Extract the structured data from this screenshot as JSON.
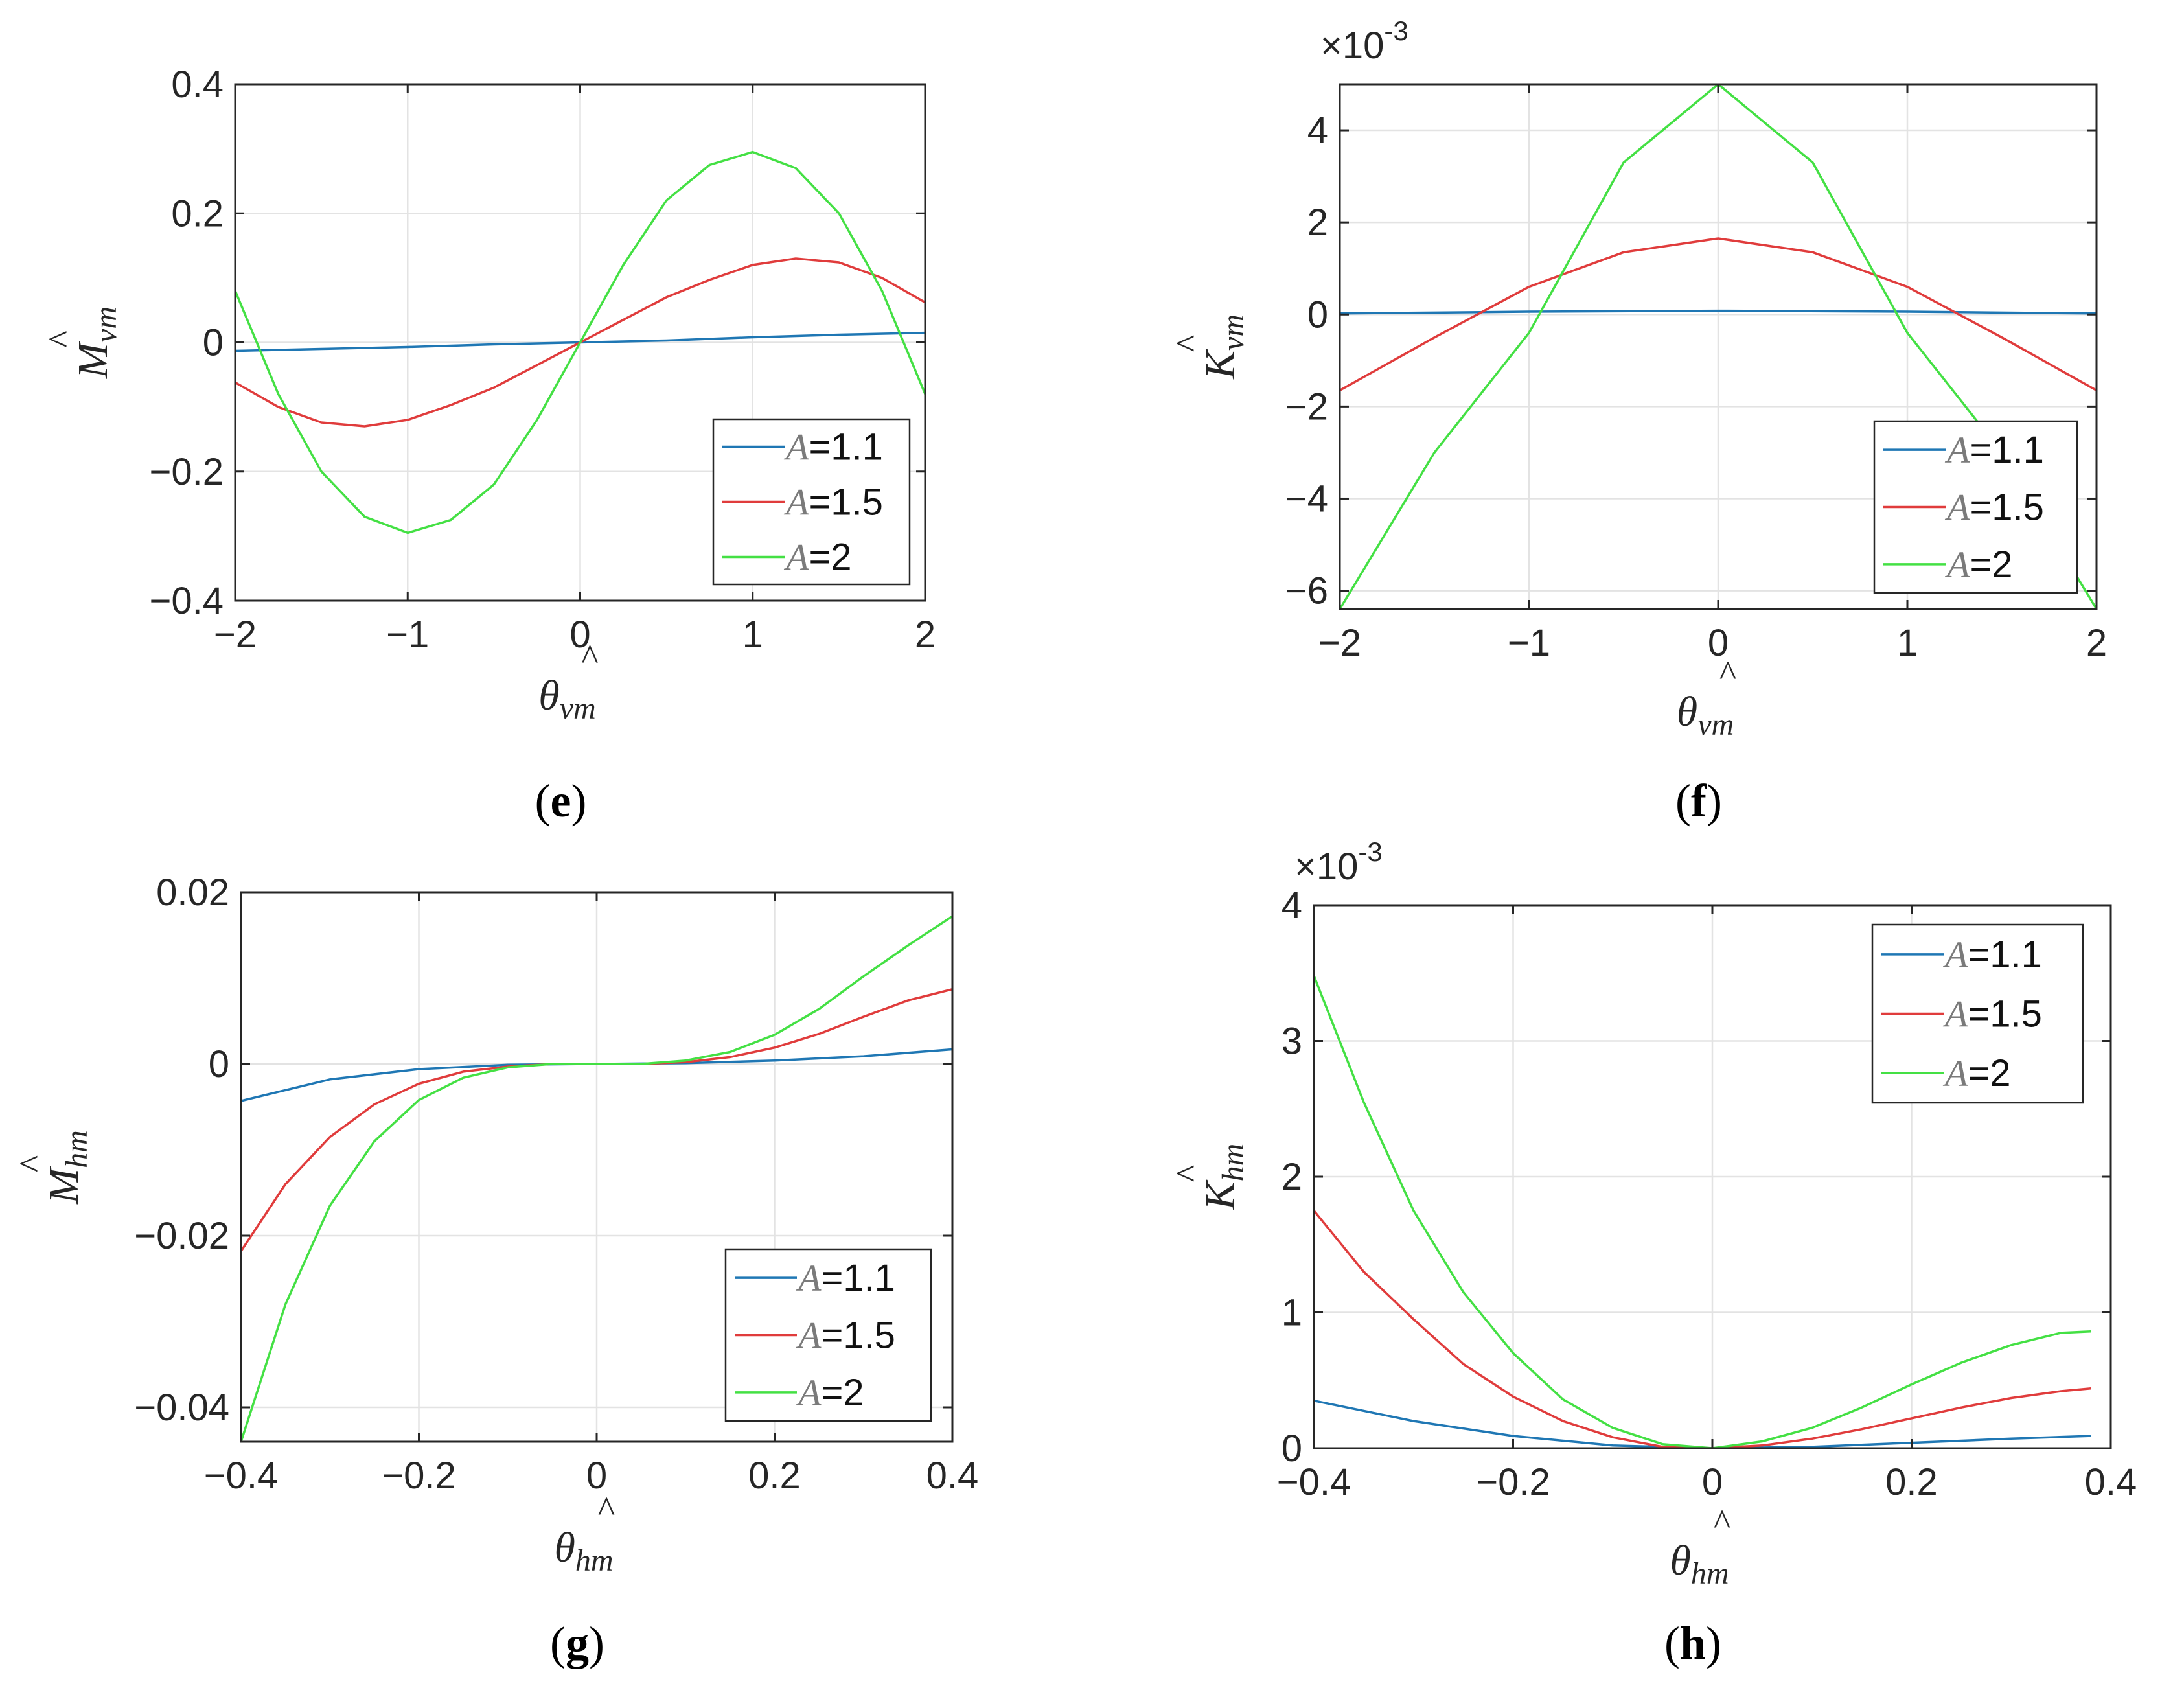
{
  "legend_prefix": "A",
  "colors": {
    "A=1.1": "#1f77b4",
    "A=1.5": "#e03c3c",
    "A=2": "#44e044"
  },
  "chart_data": [
    {
      "type": "line",
      "panel_label": "e",
      "title": "",
      "xlabel": {
        "base": "θ",
        "sub": "vm",
        "hat": "^"
      },
      "ylabel": {
        "base": "M",
        "sub": "vm",
        "hat": "^"
      },
      "xlim": [
        -2,
        2
      ],
      "ylim": [
        -0.4,
        0.4
      ],
      "xticks": [
        -2,
        -1,
        0,
        1,
        2
      ],
      "xtick_labels": [
        "−2",
        "−1",
        "0",
        "1",
        "2"
      ],
      "yticks": [
        -0.4,
        -0.2,
        0,
        0.2,
        0.4
      ],
      "ytick_labels": [
        "−0.4",
        "−0.2",
        "0",
        "0.2",
        "0.4"
      ],
      "grid": true,
      "legend_position": "bottom-right",
      "multiplier": null,
      "series": [
        {
          "name": "A=1.1",
          "legend_value": "1.1",
          "x": [
            -2,
            -1.5,
            -1,
            -0.5,
            0,
            0.5,
            1,
            1.5,
            2
          ],
          "y": [
            -0.013,
            -0.01,
            -0.007,
            -0.003,
            0,
            0.003,
            0.008,
            0.012,
            0.015
          ]
        },
        {
          "name": "A=1.5",
          "legend_value": "1.5",
          "x": [
            -2,
            -1.75,
            -1.5,
            -1.25,
            -1,
            -0.75,
            -0.5,
            -0.25,
            0,
            0.25,
            0.5,
            0.75,
            1,
            1.25,
            1.5,
            1.75,
            2
          ],
          "y": [
            -0.062,
            -0.1,
            -0.124,
            -0.13,
            -0.12,
            -0.097,
            -0.07,
            -0.035,
            0,
            0.035,
            0.07,
            0.097,
            0.12,
            0.13,
            0.124,
            0.1,
            0.062
          ]
        },
        {
          "name": "A=2",
          "legend_value": "2",
          "x": [
            -2,
            -1.75,
            -1.5,
            -1.25,
            -1,
            -0.75,
            -0.5,
            -0.25,
            0,
            0.25,
            0.5,
            0.75,
            1,
            1.25,
            1.5,
            1.75,
            2
          ],
          "y": [
            0.08,
            -0.08,
            -0.2,
            -0.27,
            -0.295,
            -0.275,
            -0.22,
            -0.12,
            0,
            0.12,
            0.22,
            0.275,
            0.295,
            0.27,
            0.2,
            0.08,
            -0.08
          ]
        }
      ]
    },
    {
      "type": "line",
      "panel_label": "f",
      "title": "",
      "xlabel": {
        "base": "θ",
        "sub": "vm",
        "hat": "^"
      },
      "ylabel": {
        "base": "K",
        "sub": "vm",
        "hat": "^"
      },
      "xlim": [
        -2,
        2
      ],
      "ylim": [
        -6.4,
        5
      ],
      "xticks": [
        -2,
        -1,
        0,
        1,
        2
      ],
      "xtick_labels": [
        "−2",
        "−1",
        "0",
        "1",
        "2"
      ],
      "yticks": [
        -6,
        -4,
        -2,
        0,
        2,
        4
      ],
      "ytick_labels": [
        "−6",
        "−4",
        "−2",
        "0",
        "2",
        "4"
      ],
      "grid": true,
      "legend_position": "bottom-right",
      "multiplier": {
        "base": "×10",
        "exponent": "-3"
      },
      "series": [
        {
          "name": "A=1.1",
          "legend_value": "1.1",
          "x": [
            -2,
            -1,
            0,
            1,
            2
          ],
          "y": [
            0.02,
            0.06,
            0.08,
            0.06,
            0.02
          ]
        },
        {
          "name": "A=1.5",
          "legend_value": "1.5",
          "x": [
            -2,
            -1.5,
            -1,
            -0.5,
            0,
            0.5,
            1,
            1.5,
            2
          ],
          "y": [
            -1.65,
            -0.5,
            0.6,
            1.35,
            1.65,
            1.35,
            0.6,
            -0.5,
            -1.65
          ]
        },
        {
          "name": "A=2",
          "legend_value": "2",
          "x": [
            -2,
            -1.5,
            -1,
            -0.5,
            0,
            0.5,
            1,
            1.5,
            2
          ],
          "y": [
            -6.4,
            -3.0,
            -0.4,
            3.3,
            5.0,
            3.3,
            -0.4,
            -3.0,
            -6.4
          ]
        }
      ]
    },
    {
      "type": "line",
      "panel_label": "g",
      "title": "",
      "xlabel": {
        "base": "θ",
        "sub": "hm",
        "hat": "^"
      },
      "ylabel": {
        "base": "M",
        "sub": "hm",
        "hat": "^"
      },
      "xlim": [
        -0.4,
        0.4
      ],
      "ylim": [
        -0.044,
        0.02
      ],
      "xticks": [
        -0.4,
        -0.2,
        0,
        0.2,
        0.4
      ],
      "xtick_labels": [
        "−0.4",
        "−0.2",
        "0",
        "0.2",
        "0.4"
      ],
      "yticks": [
        -0.04,
        -0.02,
        0,
        0.02
      ],
      "ytick_labels": [
        "−0.04",
        "−0.02",
        "0",
        "0.02"
      ],
      "grid": true,
      "legend_position": "bottom-right",
      "multiplier": null,
      "series": [
        {
          "name": "A=1.1",
          "legend_value": "1.1",
          "x": [
            -0.4,
            -0.3,
            -0.2,
            -0.1,
            0,
            0.1,
            0.2,
            0.3,
            0.4
          ],
          "y": [
            -0.0043,
            -0.0018,
            -0.0006,
            -0.0001,
            0,
            0.0001,
            0.0004,
            0.0009,
            0.0017
          ]
        },
        {
          "name": "A=1.5",
          "legend_value": "1.5",
          "x": [
            -0.4,
            -0.35,
            -0.3,
            -0.25,
            -0.2,
            -0.15,
            -0.1,
            -0.05,
            0,
            0.05,
            0.1,
            0.15,
            0.2,
            0.25,
            0.3,
            0.35,
            0.4
          ],
          "y": [
            -0.0218,
            -0.014,
            -0.0085,
            -0.0047,
            -0.0023,
            -0.0009,
            -0.0003,
            0,
            0,
            0,
            0.0002,
            0.0008,
            0.0019,
            0.0035,
            0.0055,
            0.0074,
            0.0087
          ]
        },
        {
          "name": "A=2",
          "legend_value": "2",
          "x": [
            -0.4,
            -0.35,
            -0.3,
            -0.25,
            -0.2,
            -0.15,
            -0.1,
            -0.05,
            0,
            0.05,
            0.1,
            0.15,
            0.2,
            0.25,
            0.3,
            0.35,
            0.4
          ],
          "y": [
            -0.044,
            -0.028,
            -0.0165,
            -0.009,
            -0.0042,
            -0.0016,
            -0.0004,
            0,
            0,
            0,
            0.0004,
            0.0014,
            0.0034,
            0.0064,
            0.0102,
            0.0138,
            0.0172
          ]
        }
      ]
    },
    {
      "type": "line",
      "panel_label": "h",
      "title": "",
      "xlabel": {
        "base": "θ",
        "sub": "hm",
        "hat": "^"
      },
      "ylabel": {
        "base": "K",
        "sub": "hm",
        "hat": "^"
      },
      "xlim": [
        -0.4,
        0.4
      ],
      "ylim": [
        0,
        4
      ],
      "xticks": [
        -0.4,
        -0.2,
        0,
        0.2,
        0.4
      ],
      "xtick_labels": [
        "−0.4",
        "−0.2",
        "0",
        "0.2",
        "0.4"
      ],
      "yticks": [
        0,
        1,
        2,
        3,
        4
      ],
      "ytick_labels": [
        "0",
        "1",
        "2",
        "3",
        "4"
      ],
      "grid": true,
      "legend_position": "top-right",
      "multiplier": {
        "base": "×10",
        "exponent": "-3"
      },
      "series": [
        {
          "name": "A=1.1",
          "legend_value": "1.1",
          "x": [
            -0.4,
            -0.3,
            -0.2,
            -0.1,
            0,
            0.1,
            0.2,
            0.3,
            0.38
          ],
          "y": [
            0.35,
            0.2,
            0.09,
            0.02,
            0,
            0.01,
            0.04,
            0.07,
            0.09
          ]
        },
        {
          "name": "A=1.5",
          "legend_value": "1.5",
          "x": [
            -0.4,
            -0.35,
            -0.3,
            -0.25,
            -0.2,
            -0.15,
            -0.1,
            -0.05,
            0,
            0.05,
            0.1,
            0.15,
            0.2,
            0.25,
            0.3,
            0.35,
            0.38
          ],
          "y": [
            1.75,
            1.3,
            0.95,
            0.62,
            0.38,
            0.2,
            0.08,
            0.01,
            0,
            0.02,
            0.07,
            0.14,
            0.22,
            0.3,
            0.37,
            0.42,
            0.44
          ]
        },
        {
          "name": "A=2",
          "legend_value": "2",
          "x": [
            -0.4,
            -0.35,
            -0.3,
            -0.25,
            -0.2,
            -0.15,
            -0.1,
            -0.05,
            0,
            0.05,
            0.1,
            0.15,
            0.2,
            0.25,
            0.3,
            0.35,
            0.38
          ],
          "y": [
            3.48,
            2.55,
            1.75,
            1.15,
            0.7,
            0.36,
            0.15,
            0.03,
            0,
            0.05,
            0.15,
            0.3,
            0.47,
            0.63,
            0.76,
            0.85,
            0.86
          ]
        }
      ]
    }
  ]
}
